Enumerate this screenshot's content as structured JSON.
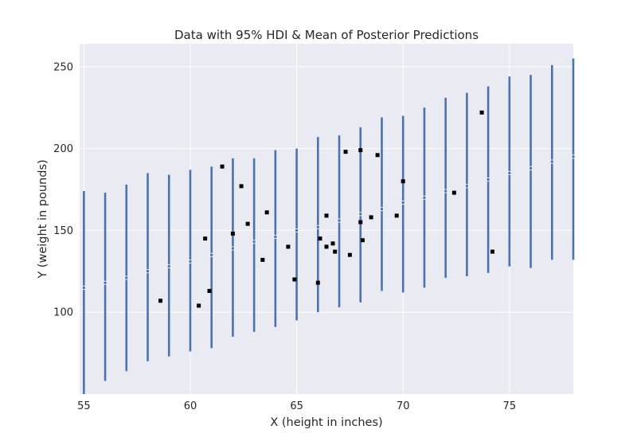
{
  "chart_data": {
    "type": "scatter",
    "title": "Data with 95% HDI & Mean of Posterior Predictions",
    "xlabel": "X (height in inches)",
    "ylabel": "Y (weight in pounds)",
    "xlim": [
      54.8,
      78
    ],
    "ylim": [
      50,
      264
    ],
    "x_ticks": [
      55,
      60,
      65,
      70,
      75
    ],
    "y_ticks": [
      100,
      150,
      200,
      250
    ],
    "grid": true,
    "colors": {
      "background": "#EAEAF2",
      "grid": "#ffffff",
      "hdi": "#4C72B0",
      "data": "#000000"
    },
    "hdi_series": {
      "x": [
        55,
        56,
        57,
        58,
        59,
        60,
        61,
        62,
        63,
        64,
        65,
        66,
        67,
        68,
        69,
        70,
        71,
        72,
        73,
        74,
        75,
        76,
        77,
        78
      ],
      "lower": [
        50,
        58,
        64,
        70,
        73,
        76,
        78,
        85,
        88,
        91,
        95,
        100,
        103,
        106,
        113,
        112,
        115,
        121,
        122,
        124,
        128,
        127,
        132,
        132
      ],
      "upper": [
        174,
        173,
        178,
        185,
        184,
        187,
        189,
        194,
        194,
        199,
        200,
        207,
        208,
        213,
        219,
        220,
        225,
        231,
        234,
        238,
        244,
        245,
        251,
        255
      ],
      "mean": [
        115,
        118,
        121,
        125,
        128,
        131,
        135,
        139,
        143,
        146,
        150,
        152,
        156,
        160,
        163,
        167,
        170,
        174,
        177,
        181,
        185,
        188,
        192,
        195
      ]
    },
    "points": [
      {
        "x": 58.6,
        "y": 107
      },
      {
        "x": 60.4,
        "y": 104
      },
      {
        "x": 60.7,
        "y": 145
      },
      {
        "x": 60.9,
        "y": 113
      },
      {
        "x": 61.5,
        "y": 189
      },
      {
        "x": 62.0,
        "y": 148
      },
      {
        "x": 62.4,
        "y": 177
      },
      {
        "x": 62.7,
        "y": 154
      },
      {
        "x": 63.4,
        "y": 132
      },
      {
        "x": 63.6,
        "y": 161
      },
      {
        "x": 64.6,
        "y": 140
      },
      {
        "x": 64.9,
        "y": 120
      },
      {
        "x": 66.0,
        "y": 118
      },
      {
        "x": 66.1,
        "y": 145
      },
      {
        "x": 66.4,
        "y": 159
      },
      {
        "x": 66.4,
        "y": 140
      },
      {
        "x": 66.7,
        "y": 142
      },
      {
        "x": 66.8,
        "y": 137
      },
      {
        "x": 67.3,
        "y": 198
      },
      {
        "x": 67.5,
        "y": 135
      },
      {
        "x": 68.0,
        "y": 199
      },
      {
        "x": 68.0,
        "y": 155
      },
      {
        "x": 68.1,
        "y": 144
      },
      {
        "x": 68.5,
        "y": 158
      },
      {
        "x": 68.8,
        "y": 196
      },
      {
        "x": 69.7,
        "y": 159
      },
      {
        "x": 70.0,
        "y": 180
      },
      {
        "x": 72.4,
        "y": 173
      },
      {
        "x": 73.7,
        "y": 222
      },
      {
        "x": 74.2,
        "y": 137
      }
    ]
  }
}
